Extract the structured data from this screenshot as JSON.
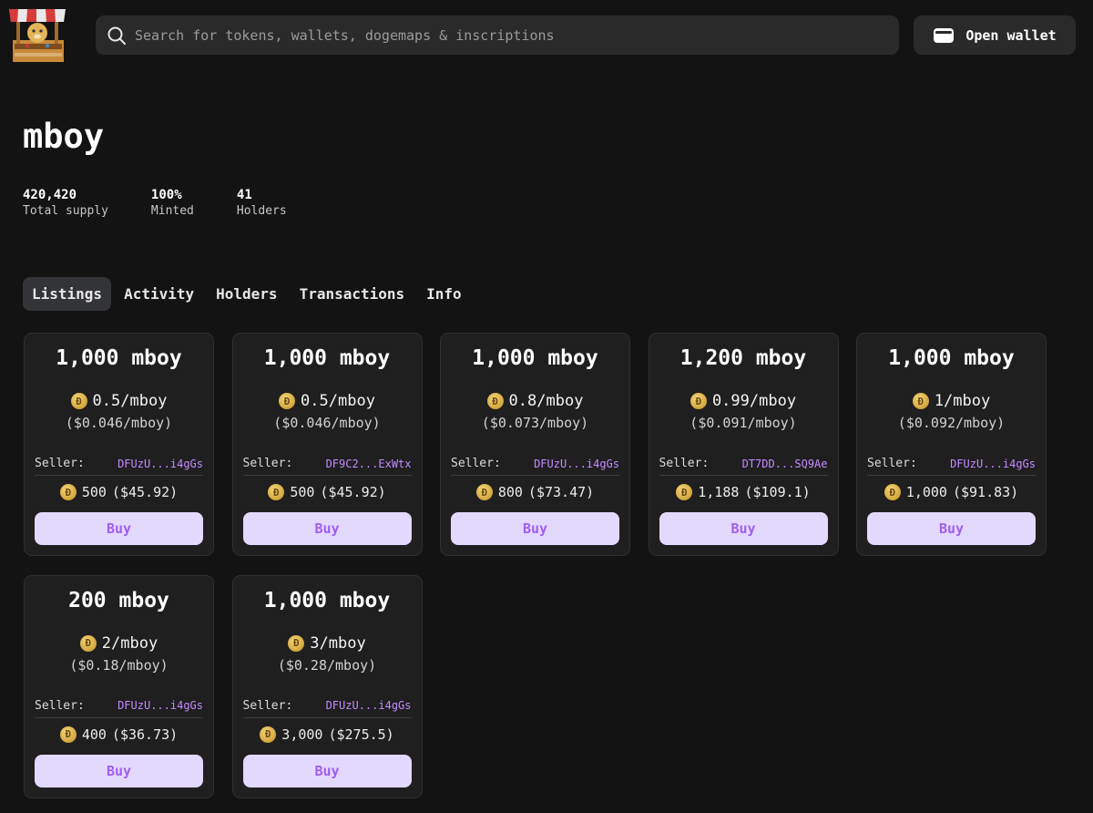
{
  "header": {
    "search_placeholder": "Search for tokens, wallets, dogemaps & inscriptions",
    "open_wallet_label": "Open wallet"
  },
  "token": {
    "name": "mboy",
    "stats": [
      {
        "value": "420,420",
        "label": "Total supply"
      },
      {
        "value": "100%",
        "label": "Minted"
      },
      {
        "value": "41",
        "label": "Holders"
      }
    ]
  },
  "tabs": [
    {
      "label": "Listings",
      "active": true
    },
    {
      "label": "Activity"
    },
    {
      "label": "Holders"
    },
    {
      "label": "Transactions"
    },
    {
      "label": "Info"
    }
  ],
  "seller_label": "Seller:",
  "buy_label": "Buy",
  "listings": [
    {
      "amount": "1,000 mboy",
      "price": "0.5/mboy",
      "usd": "($0.046/mboy)",
      "seller": "DFUzU...i4gGs",
      "total": "500",
      "total_usd": "($45.92)"
    },
    {
      "amount": "1,000 mboy",
      "price": "0.5/mboy",
      "usd": "($0.046/mboy)",
      "seller": "DF9C2...ExWtx",
      "total": "500",
      "total_usd": "($45.92)"
    },
    {
      "amount": "1,000 mboy",
      "price": "0.8/mboy",
      "usd": "($0.073/mboy)",
      "seller": "DFUzU...i4gGs",
      "total": "800",
      "total_usd": "($73.47)"
    },
    {
      "amount": "1,200 mboy",
      "price": "0.99/mboy",
      "usd": "($0.091/mboy)",
      "seller": "DT7DD...SQ9Ae",
      "total": "1,188",
      "total_usd": "($109.1)"
    },
    {
      "amount": "1,000 mboy",
      "price": "1/mboy",
      "usd": "($0.092/mboy)",
      "seller": "DFUzU...i4gGs",
      "total": "1,000",
      "total_usd": "($91.83)"
    },
    {
      "amount": "200 mboy",
      "price": "2/mboy",
      "usd": "($0.18/mboy)",
      "seller": "DFUzU...i4gGs",
      "total": "400",
      "total_usd": "($36.73)"
    },
    {
      "amount": "1,000 mboy",
      "price": "3/mboy",
      "usd": "($0.28/mboy)",
      "seller": "DFUzU...i4gGs",
      "total": "3,000",
      "total_usd": "($275.5)"
    }
  ]
}
